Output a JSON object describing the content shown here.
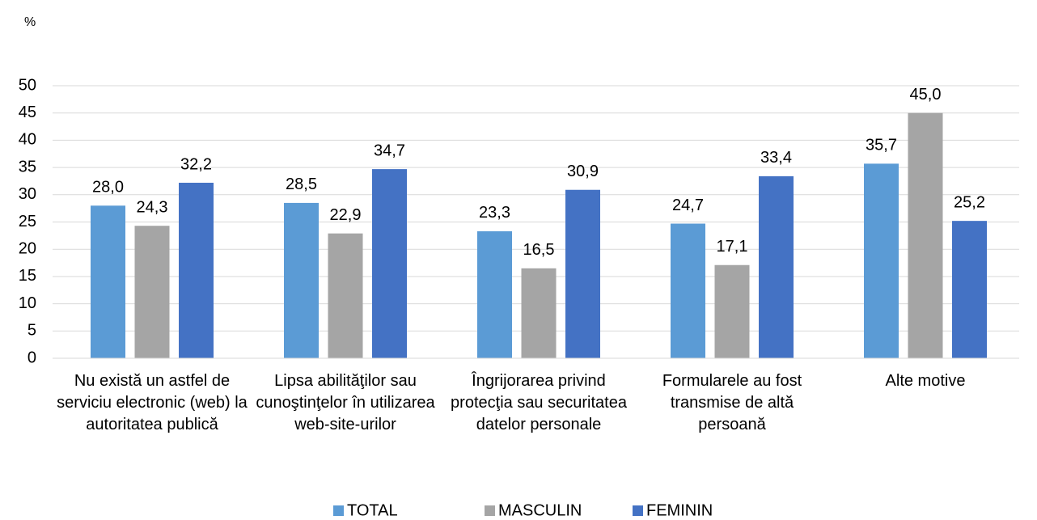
{
  "chart_data": {
    "type": "bar",
    "y_label": "%",
    "categories": [
      "Nu există un astfel de serviciu electronic (web) la autoritatea publică",
      "Lipsa abilităţilor sau cunoştinţelor în utilizarea web-site-urilor",
      "Îngrijorarea privind protecţia sau securitatea datelor personale",
      "Formularele au fost transmise de altă persoană",
      "Alte motive"
    ],
    "series": [
      {
        "name": "TOTAL",
        "color": "#5b9bd5",
        "values": [
          28.0,
          28.5,
          23.3,
          24.7,
          35.7
        ],
        "value_labels": [
          "28,0",
          "28,5",
          "23,3",
          "24,7",
          "35,7"
        ]
      },
      {
        "name": "MASCULIN",
        "color": "#a5a5a5",
        "values": [
          24.3,
          22.9,
          16.5,
          17.1,
          45.0
        ],
        "value_labels": [
          "24,3",
          "22,9",
          "16,5",
          "17,1",
          "45,0"
        ]
      },
      {
        "name": "FEMININ",
        "color": "#4472c4",
        "values": [
          32.2,
          34.7,
          30.9,
          33.4,
          25.2
        ],
        "value_labels": [
          "32,2",
          "34,7",
          "30,9",
          "33,4",
          "25,2"
        ]
      }
    ],
    "ylim": [
      0,
      50
    ],
    "yticks": [
      0,
      5,
      10,
      15,
      20,
      25,
      30,
      35,
      40,
      45,
      50
    ],
    "grid": true,
    "legend": "bottom"
  }
}
